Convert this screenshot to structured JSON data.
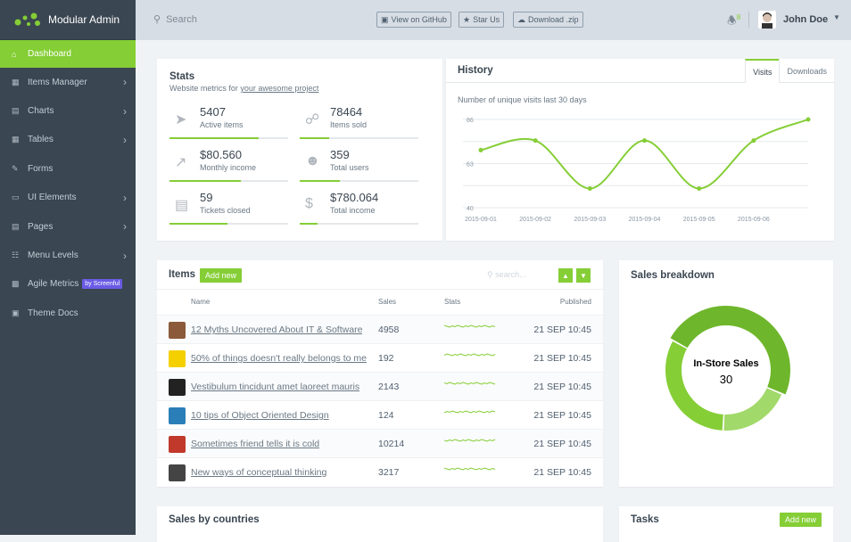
{
  "brand": {
    "name": "Modular Admin"
  },
  "sidebar": {
    "items": [
      {
        "label": "Dashboard",
        "icon": "home-icon",
        "active": true,
        "chevron": false
      },
      {
        "label": "Items Manager",
        "icon": "grid-icon",
        "chevron": true
      },
      {
        "label": "Charts",
        "icon": "area-chart-icon",
        "chevron": true
      },
      {
        "label": "Tables",
        "icon": "table-icon",
        "chevron": true
      },
      {
        "label": "Forms",
        "icon": "edit-icon",
        "chevron": false
      },
      {
        "label": "UI Elements",
        "icon": "desktop-icon",
        "chevron": true
      },
      {
        "label": "Pages",
        "icon": "file-icon",
        "chevron": true
      },
      {
        "label": "Menu Levels",
        "icon": "sitemap-icon",
        "chevron": true
      },
      {
        "label": "Agile Metrics",
        "icon": "bar-chart-icon",
        "chevron": false,
        "badge": "by Screenful"
      },
      {
        "label": "Theme Docs",
        "icon": "book-icon",
        "chevron": false
      }
    ]
  },
  "header": {
    "search_placeholder": "Search",
    "github": "View on GitHub",
    "star": "Star Us",
    "download": "Download .zip",
    "notifications": "8",
    "user": "John Doe"
  },
  "stats": {
    "title": "Stats",
    "subtitle": "Website metrics for ",
    "subtitle_link": "your awesome project",
    "items": [
      {
        "value": "5407",
        "label": "Active items",
        "icon": "rocket-icon",
        "progress": 75
      },
      {
        "value": "78464",
        "label": "Items sold",
        "icon": "cart-icon",
        "progress": 25
      },
      {
        "value": "$80.560",
        "label": "Monthly income",
        "icon": "line-chart-icon",
        "progress": 60
      },
      {
        "value": "359",
        "label": "Total users",
        "icon": "users-icon",
        "progress": 34
      },
      {
        "value": "59",
        "label": "Tickets closed",
        "icon": "list-alt-icon",
        "progress": 49
      },
      {
        "value": "$780.064",
        "label": "Total income",
        "icon": "dollar-icon",
        "progress": 15
      }
    ]
  },
  "history": {
    "title": "History",
    "tabs": [
      "Visits",
      "Downloads"
    ],
    "active_tab": "Visits",
    "subtitle": "Number of unique visits last 30 days"
  },
  "chart_data": [
    {
      "type": "line",
      "x": [
        "2015-09-01",
        "2015-09-02",
        "2015-09-03",
        "2015-09-04",
        "2015-09-05",
        "2015-09-06",
        ""
      ],
      "values": [
        70,
        75,
        50,
        75,
        50,
        75,
        86
      ],
      "yticks": [
        40,
        63,
        86
      ],
      "ylim": [
        40,
        86
      ],
      "grid": true,
      "color": "#85ce36"
    },
    {
      "type": "pie",
      "subtype": "donut",
      "segments": [
        {
          "label": "In-Store Sales",
          "value": 30,
          "color": "#6eb62b",
          "highlighted": true
        },
        {
          "value": 12,
          "color": "#a1d96a"
        },
        {
          "value": 20,
          "color": "#85ce36"
        }
      ]
    }
  ],
  "items": {
    "title": "Items",
    "add_label": "Add new",
    "search_placeholder": "search...",
    "columns": [
      "Name",
      "Sales",
      "Stats",
      "Published"
    ],
    "rows": [
      {
        "name": "12 Myths Uncovered About IT & Software",
        "sales": "4958",
        "published": "21 SEP 10:45",
        "thumb": "#8a5a3a"
      },
      {
        "name": "50% of things doesn't really belongs to me",
        "sales": "192",
        "published": "21 SEP 10:45",
        "thumb": "#f5d000"
      },
      {
        "name": "Vestibulum tincidunt amet laoreet mauris",
        "sales": "2143",
        "published": "21 SEP 10:45",
        "thumb": "#222"
      },
      {
        "name": "10 tips of Object Oriented Design",
        "sales": "124",
        "published": "21 SEP 10:45",
        "thumb": "#2a7fb8"
      },
      {
        "name": "Sometimes friend tells it is cold",
        "sales": "10214",
        "published": "21 SEP 10:45",
        "thumb": "#c0392b"
      },
      {
        "name": "New ways of conceptual thinking",
        "sales": "3217",
        "published": "21 SEP 10:45",
        "thumb": "#444"
      }
    ]
  },
  "breakdown": {
    "title": "Sales breakdown",
    "center_label": "In-Store Sales",
    "center_value": "30"
  },
  "countries": {
    "title": "Sales by countries"
  },
  "tasks": {
    "title": "Tasks",
    "add_label": "Add new"
  }
}
